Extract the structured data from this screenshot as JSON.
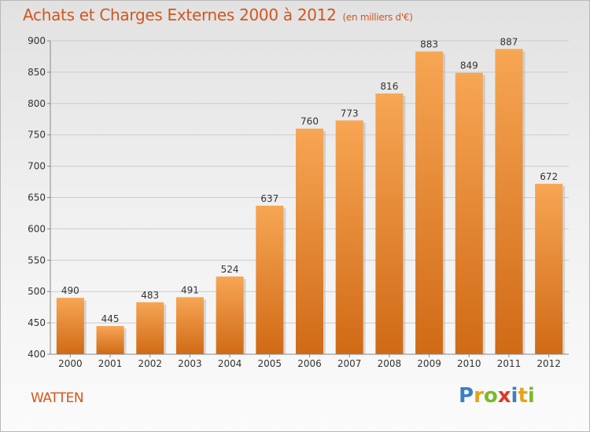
{
  "title": "Achats et Charges Externes 2000 à 2012",
  "subtitle": "(en milliers d'€)",
  "commune": "WATTEN",
  "logo": {
    "text": "Proxiti",
    "colors": [
      "#3a7fc1",
      "#e8a21a",
      "#7ab929",
      "#d83b2a",
      "#3a7fc1",
      "#e8a21a",
      "#7ab929"
    ]
  },
  "colors": {
    "title": "#d2561e",
    "bar_top": "#f7a654",
    "bar_bottom": "#d06a16",
    "grid": "#cccccc"
  },
  "chart_data": {
    "type": "bar",
    "categories": [
      "2000",
      "2001",
      "2002",
      "2003",
      "2004",
      "2005",
      "2006",
      "2007",
      "2008",
      "2009",
      "2010",
      "2011",
      "2012"
    ],
    "values": [
      490,
      445,
      483,
      491,
      524,
      637,
      760,
      773,
      816,
      883,
      849,
      887,
      672
    ],
    "ylim": [
      400,
      900
    ],
    "yticks": [
      400,
      450,
      500,
      550,
      600,
      650,
      700,
      750,
      800,
      850,
      900
    ],
    "grid": true
  }
}
